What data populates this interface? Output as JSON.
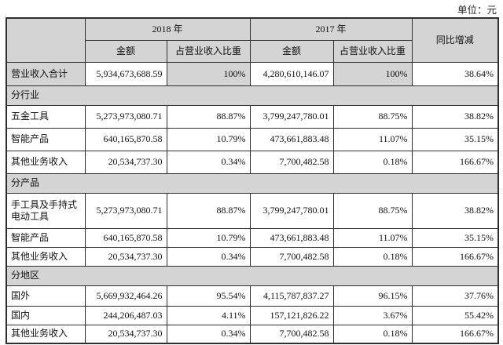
{
  "unit_label": "单位：元",
  "colors": {
    "header_bg": "#d4d4d4",
    "band_bg": "#d4d4d4",
    "border": "#2e2e2e",
    "cell_bg": "#ffffff"
  },
  "table": {
    "headers": {
      "y2018": "2018 年",
      "y2017": "2017 年",
      "amount": "金额",
      "pct": "占营业收入比重",
      "yoy": "同比增减"
    },
    "total_row": [
      "营业收入合计",
      "5,934,673,688.59",
      "100%",
      "4,280,610,146.07",
      "100%",
      "38.64%"
    ],
    "sections": [
      {
        "title": "分行业",
        "rows": [
          [
            "五金工具",
            "5,273,973,080.71",
            "88.87%",
            "3,799,247,780.01",
            "88.75%",
            "38.82%"
          ],
          [
            "智能产品",
            "640,165,870.58",
            "10.79%",
            "473,661,883.48",
            "11.07%",
            "35.15%"
          ],
          [
            "其他业务收入",
            "20,534,737.30",
            "0.34%",
            "7,700,482.58",
            "0.18%",
            "166.67%"
          ]
        ]
      },
      {
        "title": "分产品",
        "rows": [
          [
            "手工具及手持式电动工具",
            "5,273,973,080.71",
            "88.87%",
            "3,799,247,780.01",
            "88.75%",
            "38.82%"
          ],
          [
            "智能产品",
            "640,165,870.58",
            "10.79%",
            "473,661,883.48",
            "11.07%",
            "35.15%"
          ],
          [
            "其他业务收入",
            "20,534,737.30",
            "0.34%",
            "7,700,482.58",
            "0.18%",
            "166.67%"
          ]
        ]
      },
      {
        "title": "分地区",
        "rows": [
          [
            "国外",
            "5,669,932,464.26",
            "95.54%",
            "4,115,787,837.27",
            "96.15%",
            "37.76%"
          ],
          [
            "国内",
            "244,206,487.03",
            "4.11%",
            "157,121,826.22",
            "3.67%",
            "55.42%"
          ],
          [
            "其他业务收入",
            "20,534,737.30",
            "0.34%",
            "7,700,482.58",
            "0.18%",
            "166.67%"
          ]
        ]
      }
    ]
  }
}
